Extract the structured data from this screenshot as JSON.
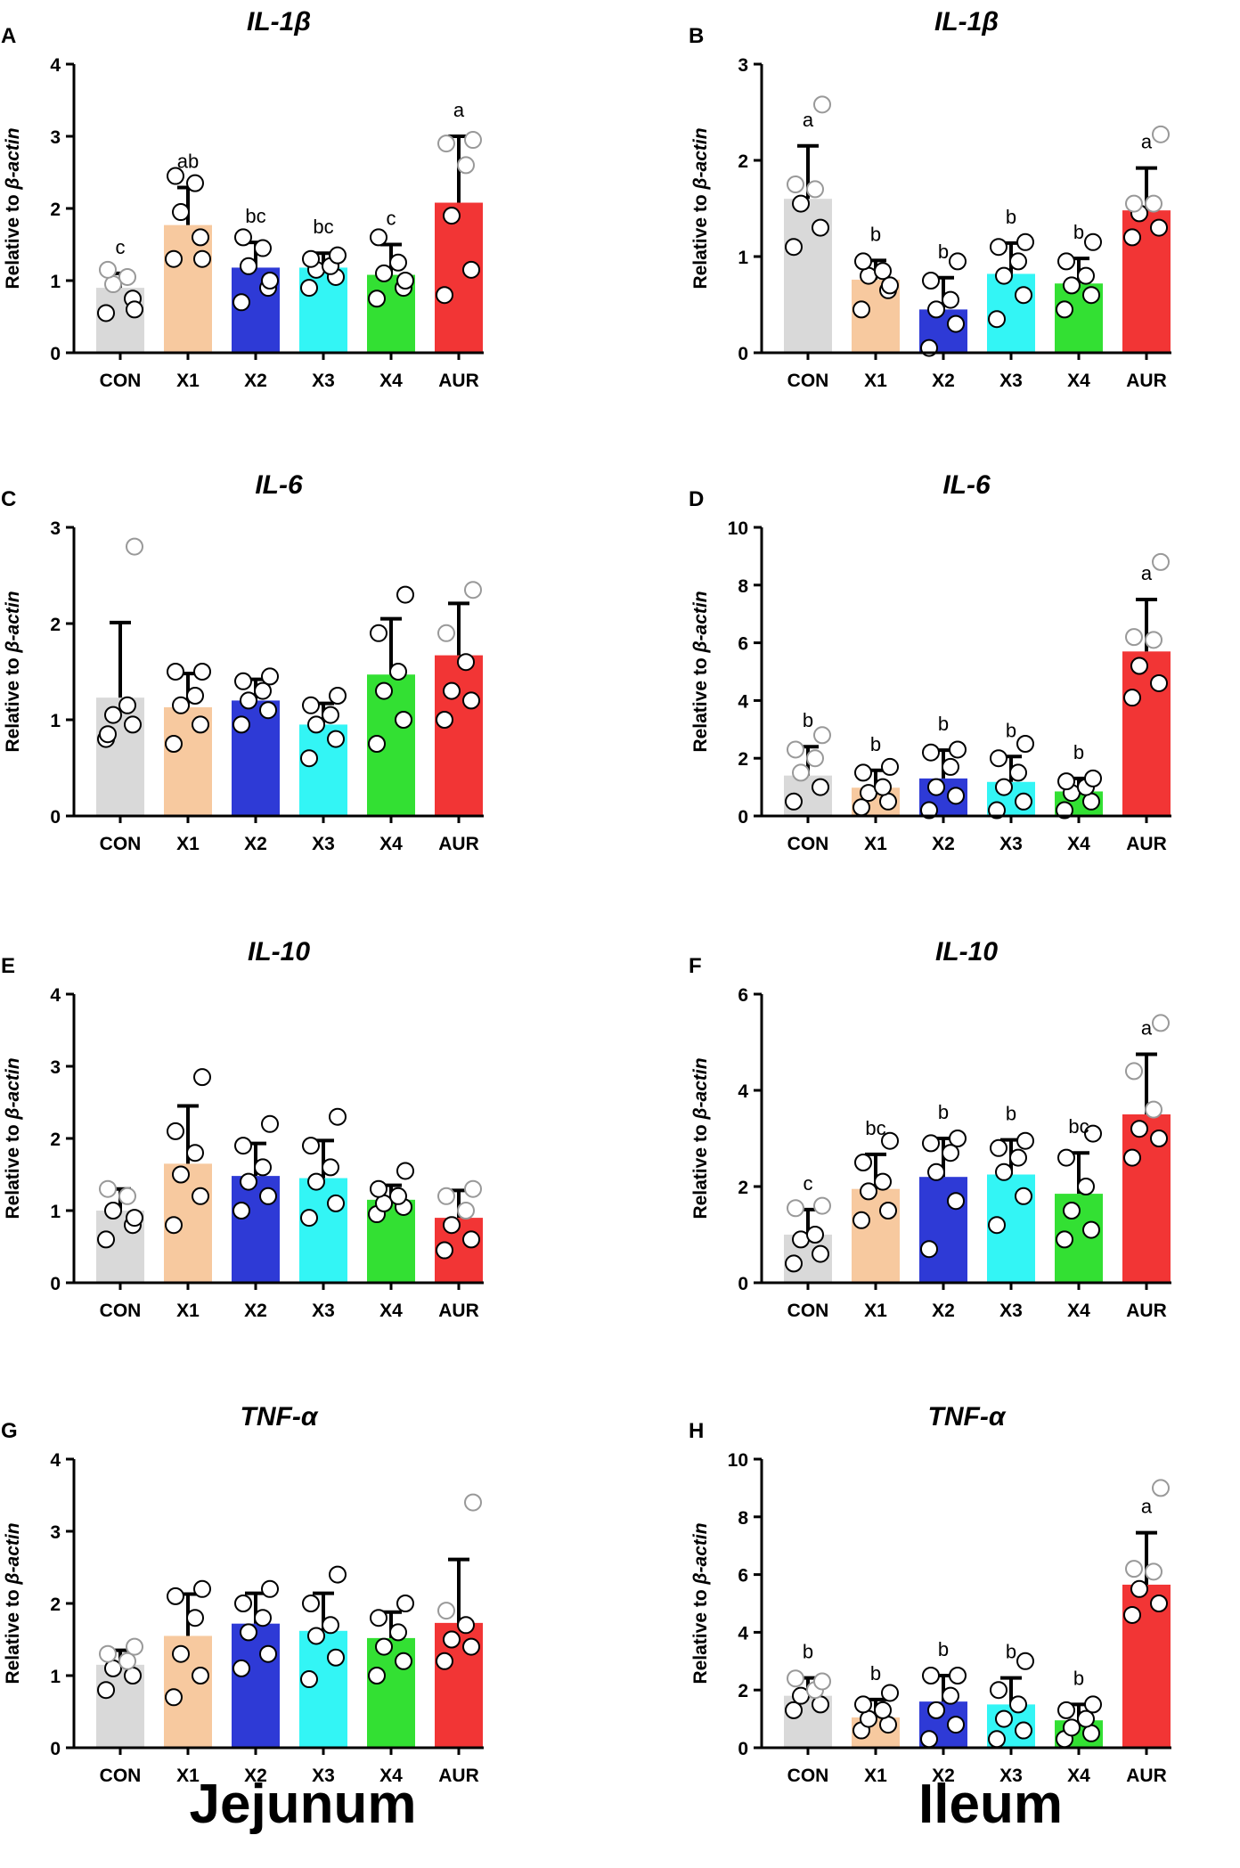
{
  "figure": {
    "footer": {
      "left": "Jejunum",
      "right": "Ileum"
    },
    "categories": [
      "CON",
      "X1",
      "X2",
      "X3",
      "X4",
      "AUR"
    ],
    "colors": [
      "#d9d9d9",
      "#f7c99f",
      "#2e3ad6",
      "#33f5f5",
      "#33e033",
      "#f23535"
    ],
    "ylabel_prefix": "Relative to ",
    "ylabel_italic": "β-actin"
  },
  "chart_data": [
    {
      "panel": "A",
      "type": "bar",
      "title": "IL-1β",
      "tissue": "Jejunum",
      "ylim": [
        0,
        4
      ],
      "yticks": [
        0,
        1,
        2,
        3,
        4
      ],
      "categories": [
        "CON",
        "X1",
        "X2",
        "X3",
        "X4",
        "AUR"
      ],
      "values": [
        0.9,
        1.77,
        1.18,
        1.18,
        1.08,
        2.08
      ],
      "errors": [
        0.2,
        0.52,
        0.35,
        0.2,
        0.42,
        0.92
      ],
      "letters": [
        "c",
        "ab",
        "bc",
        "bc",
        "c",
        "a"
      ],
      "points": [
        [
          0.55,
          0.75,
          0.95,
          1.05,
          1.15,
          0.6
        ],
        [
          1.3,
          1.6,
          1.95,
          2.35,
          2.45,
          1.3
        ],
        [
          0.7,
          0.9,
          1.2,
          1.45,
          1.6,
          1.0
        ],
        [
          0.9,
          1.05,
          1.15,
          1.2,
          1.3,
          1.35
        ],
        [
          0.75,
          0.9,
          1.1,
          1.25,
          1.6,
          1.0
        ],
        [
          0.8,
          1.15,
          1.9,
          2.6,
          2.9,
          2.95
        ]
      ]
    },
    {
      "panel": "B",
      "type": "bar",
      "title": "IL-1β",
      "tissue": "Ileum",
      "ylim": [
        0,
        3
      ],
      "yticks": [
        0,
        1,
        2,
        3
      ],
      "categories": [
        "CON",
        "X1",
        "X2",
        "X3",
        "X4",
        "AUR"
      ],
      "values": [
        1.6,
        0.76,
        0.45,
        0.82,
        0.72,
        1.48
      ],
      "errors": [
        0.55,
        0.2,
        0.33,
        0.32,
        0.26,
        0.44
      ],
      "letters": [
        "a",
        "b",
        "b",
        "b",
        "b",
        "a"
      ],
      "points": [
        [
          1.1,
          1.3,
          1.55,
          1.7,
          1.75,
          2.58
        ],
        [
          0.45,
          0.65,
          0.8,
          0.85,
          0.95,
          0.7
        ],
        [
          0.05,
          0.3,
          0.45,
          0.55,
          0.75,
          0.95
        ],
        [
          0.35,
          0.6,
          0.8,
          0.95,
          1.1,
          1.15
        ],
        [
          0.45,
          0.6,
          0.7,
          0.8,
          0.95,
          1.15
        ],
        [
          1.2,
          1.3,
          1.45,
          1.55,
          1.55,
          2.27
        ]
      ]
    },
    {
      "panel": "C",
      "type": "bar",
      "title": "IL-6",
      "tissue": "Jejunum",
      "ylim": [
        0,
        3
      ],
      "yticks": [
        0,
        1,
        2,
        3
      ],
      "categories": [
        "CON",
        "X1",
        "X2",
        "X3",
        "X4",
        "AUR"
      ],
      "values": [
        1.23,
        1.13,
        1.2,
        0.95,
        1.47,
        1.67
      ],
      "errors": [
        0.78,
        0.35,
        0.22,
        0.22,
        0.58,
        0.54
      ],
      "letters": [
        "",
        "",
        "",
        "",
        "",
        ""
      ],
      "points": [
        [
          0.8,
          0.95,
          1.05,
          1.15,
          0.85,
          2.8
        ],
        [
          0.75,
          0.95,
          1.15,
          1.25,
          1.5,
          1.5
        ],
        [
          0.95,
          1.1,
          1.2,
          1.3,
          1.4,
          1.45
        ],
        [
          0.6,
          0.8,
          0.95,
          1.05,
          1.15,
          1.25
        ],
        [
          0.75,
          1.0,
          1.3,
          1.5,
          1.9,
          2.3
        ],
        [
          1.0,
          1.2,
          1.3,
          1.6,
          1.9,
          2.35
        ]
      ]
    },
    {
      "panel": "D",
      "type": "bar",
      "title": "IL-6",
      "tissue": "Ileum",
      "ylim": [
        0,
        10
      ],
      "yticks": [
        0,
        2,
        4,
        6,
        8,
        10
      ],
      "categories": [
        "CON",
        "X1",
        "X2",
        "X3",
        "X4",
        "AUR"
      ],
      "values": [
        1.4,
        0.98,
        1.3,
        1.18,
        0.85,
        5.7
      ],
      "errors": [
        1.0,
        0.6,
        0.98,
        0.88,
        0.45,
        1.8
      ],
      "letters": [
        "b",
        "b",
        "b",
        "b",
        "b",
        "a"
      ],
      "points": [
        [
          0.5,
          1.0,
          1.5,
          2.0,
          2.3,
          2.8
        ],
        [
          0.3,
          0.5,
          0.8,
          1.0,
          1.5,
          1.7
        ],
        [
          0.2,
          0.7,
          1.0,
          1.7,
          2.2,
          2.3
        ],
        [
          0.2,
          0.5,
          1.0,
          1.5,
          2.0,
          2.5
        ],
        [
          0.2,
          0.5,
          0.8,
          1.0,
          1.2,
          1.3
        ],
        [
          4.1,
          4.6,
          5.2,
          6.1,
          6.2,
          8.8
        ]
      ]
    },
    {
      "panel": "E",
      "type": "bar",
      "title": "IL-10",
      "tissue": "Jejunum",
      "ylim": [
        0,
        4
      ],
      "yticks": [
        0,
        1,
        2,
        3,
        4
      ],
      "categories": [
        "CON",
        "X1",
        "X2",
        "X3",
        "X4",
        "AUR"
      ],
      "values": [
        1.0,
        1.65,
        1.48,
        1.45,
        1.15,
        0.9
      ],
      "errors": [
        0.3,
        0.8,
        0.45,
        0.52,
        0.2,
        0.38
      ],
      "letters": [
        "",
        "",
        "",
        "",
        "",
        ""
      ],
      "points": [
        [
          0.6,
          0.8,
          1.0,
          1.2,
          1.3,
          0.9
        ],
        [
          0.8,
          1.2,
          1.5,
          1.8,
          2.1,
          2.85
        ],
        [
          1.0,
          1.2,
          1.4,
          1.6,
          1.9,
          2.2
        ],
        [
          0.9,
          1.1,
          1.4,
          1.6,
          1.9,
          2.3
        ],
        [
          0.95,
          1.05,
          1.1,
          1.2,
          1.3,
          1.55
        ],
        [
          0.45,
          0.6,
          0.8,
          1.0,
          1.2,
          1.3
        ]
      ]
    },
    {
      "panel": "F",
      "type": "bar",
      "title": "IL-10",
      "tissue": "Ileum",
      "ylim": [
        0,
        6
      ],
      "yticks": [
        0,
        2,
        4,
        6
      ],
      "categories": [
        "CON",
        "X1",
        "X2",
        "X3",
        "X4",
        "AUR"
      ],
      "values": [
        1.0,
        1.95,
        2.2,
        2.25,
        1.85,
        3.5
      ],
      "errors": [
        0.52,
        0.72,
        0.8,
        0.72,
        0.85,
        1.25
      ],
      "letters": [
        "c",
        "bc",
        "b",
        "b",
        "bc",
        "a"
      ],
      "points": [
        [
          0.4,
          0.6,
          0.9,
          1.0,
          1.55,
          1.6
        ],
        [
          1.3,
          1.5,
          1.9,
          2.1,
          2.5,
          2.95
        ],
        [
          0.7,
          1.7,
          2.3,
          2.7,
          2.9,
          3.0
        ],
        [
          1.2,
          1.8,
          2.3,
          2.6,
          2.8,
          2.95
        ],
        [
          0.9,
          1.1,
          1.5,
          2.0,
          2.6,
          3.1
        ],
        [
          2.6,
          3.0,
          3.2,
          3.6,
          4.4,
          5.4
        ]
      ]
    },
    {
      "panel": "G",
      "type": "bar",
      "title": "TNF-α",
      "tissue": "Jejunum",
      "ylim": [
        0,
        4
      ],
      "yticks": [
        0,
        1,
        2,
        3,
        4
      ],
      "categories": [
        "CON",
        "X1",
        "X2",
        "X3",
        "X4",
        "AUR"
      ],
      "values": [
        1.15,
        1.55,
        1.72,
        1.62,
        1.52,
        1.73
      ],
      "errors": [
        0.2,
        0.58,
        0.42,
        0.52,
        0.36,
        0.88
      ],
      "letters": [
        "",
        "",
        "",
        "",
        "",
        ""
      ],
      "points": [
        [
          0.8,
          1.0,
          1.1,
          1.2,
          1.3,
          1.4
        ],
        [
          0.7,
          1.0,
          1.3,
          1.8,
          2.1,
          2.2
        ],
        [
          1.1,
          1.3,
          1.6,
          1.8,
          2.0,
          2.2
        ],
        [
          0.95,
          1.25,
          1.55,
          1.7,
          2.0,
          2.4
        ],
        [
          1.0,
          1.2,
          1.4,
          1.6,
          1.8,
          2.0
        ],
        [
          1.2,
          1.4,
          1.5,
          1.7,
          1.9,
          3.4
        ]
      ]
    },
    {
      "panel": "H",
      "type": "bar",
      "title": "TNF-α",
      "tissue": "Ileum",
      "ylim": [
        0,
        10
      ],
      "yticks": [
        0,
        2,
        4,
        6,
        8,
        10
      ],
      "categories": [
        "CON",
        "X1",
        "X2",
        "X3",
        "X4",
        "AUR"
      ],
      "values": [
        1.8,
        1.05,
        1.6,
        1.5,
        0.95,
        5.65
      ],
      "errors": [
        0.62,
        0.62,
        0.9,
        0.92,
        0.55,
        1.8
      ],
      "letters": [
        "b",
        "b",
        "b",
        "b",
        "b",
        "a"
      ],
      "points": [
        [
          1.3,
          1.5,
          1.8,
          2.0,
          2.4,
          2.3
        ],
        [
          0.6,
          0.8,
          1.0,
          1.3,
          1.5,
          1.9
        ],
        [
          0.3,
          0.8,
          1.3,
          1.8,
          2.5,
          2.5
        ],
        [
          0.3,
          0.6,
          1.0,
          1.5,
          2.0,
          3.0
        ],
        [
          0.3,
          0.5,
          0.7,
          1.0,
          1.3,
          1.5
        ],
        [
          4.6,
          5.0,
          5.5,
          6.1,
          6.2,
          9.0
        ]
      ]
    }
  ]
}
